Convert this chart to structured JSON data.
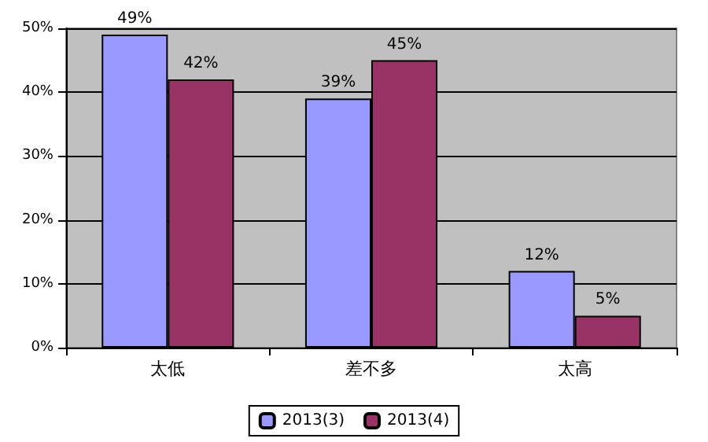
{
  "chart_data": {
    "type": "bar",
    "categories": [
      "太低",
      "差不多",
      "太高"
    ],
    "series": [
      {
        "name": "2013(3)",
        "color": "#9999ff",
        "values": [
          49,
          39,
          12
        ],
        "value_labels": [
          "49%",
          "39%",
          "12%"
        ]
      },
      {
        "name": "2013(4)",
        "color": "#993366",
        "values": [
          42,
          45,
          5
        ],
        "value_labels": [
          "42%",
          "45%",
          "5%"
        ]
      }
    ],
    "ylim": [
      0,
      50
    ],
    "yticks": [
      {
        "value": 0,
        "label": "0%"
      },
      {
        "value": 10,
        "label": "10%"
      },
      {
        "value": 20,
        "label": "20%"
      },
      {
        "value": 30,
        "label": "30%"
      },
      {
        "value": 40,
        "label": "40%"
      },
      {
        "value": 50,
        "label": "50%"
      }
    ],
    "grid": "y",
    "legend": "bottom"
  }
}
